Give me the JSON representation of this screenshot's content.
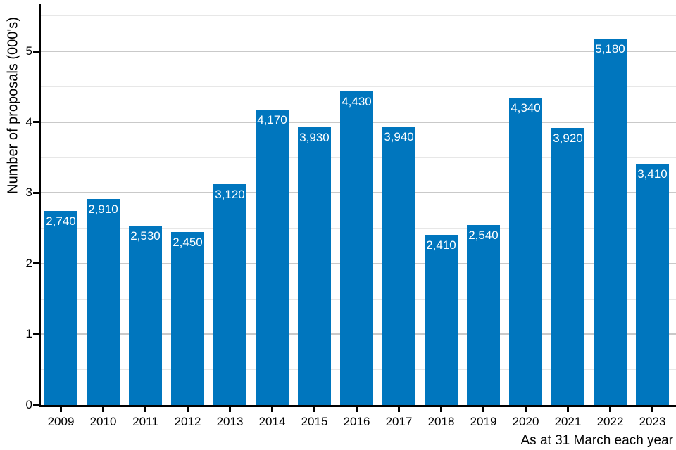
{
  "chart_data": {
    "type": "bar",
    "title": "",
    "xlabel": "As at 31 March each year",
    "ylabel": "Number of proposals (000's)",
    "categories": [
      "2009",
      "2010",
      "2011",
      "2012",
      "2013",
      "2014",
      "2015",
      "2016",
      "2017",
      "2018",
      "2019",
      "2020",
      "2021",
      "2022",
      "2023"
    ],
    "values": [
      2740,
      2910,
      2530,
      2450,
      3120,
      4170,
      3930,
      4430,
      3940,
      2410,
      2540,
      4340,
      3920,
      5180,
      3410
    ],
    "bar_labels": [
      "2,740",
      "2,910",
      "2,530",
      "2,450",
      "3,120",
      "4,170",
      "3,930",
      "4,430",
      "3,940",
      "2,410",
      "2,540",
      "4,340",
      "3,920",
      "5,180",
      "3,410"
    ],
    "y_tick_labels": [
      "0",
      "1",
      "2",
      "3",
      "4",
      "5"
    ],
    "y_ticks": [
      0,
      1,
      2,
      3,
      4,
      5
    ],
    "ylim": [
      0,
      5.67
    ],
    "gridline_step": 0.5,
    "grid": true,
    "legend": "none",
    "value_unit": "proposals, thousands shown on axis",
    "colors": {
      "bar": "#0076be",
      "bar_label": "#ffffff",
      "grid_major": "#c9c9c9",
      "grid_minor": "#e7e7e7",
      "axis": "#000000",
      "text": "#000000",
      "background": "#ffffff"
    }
  }
}
